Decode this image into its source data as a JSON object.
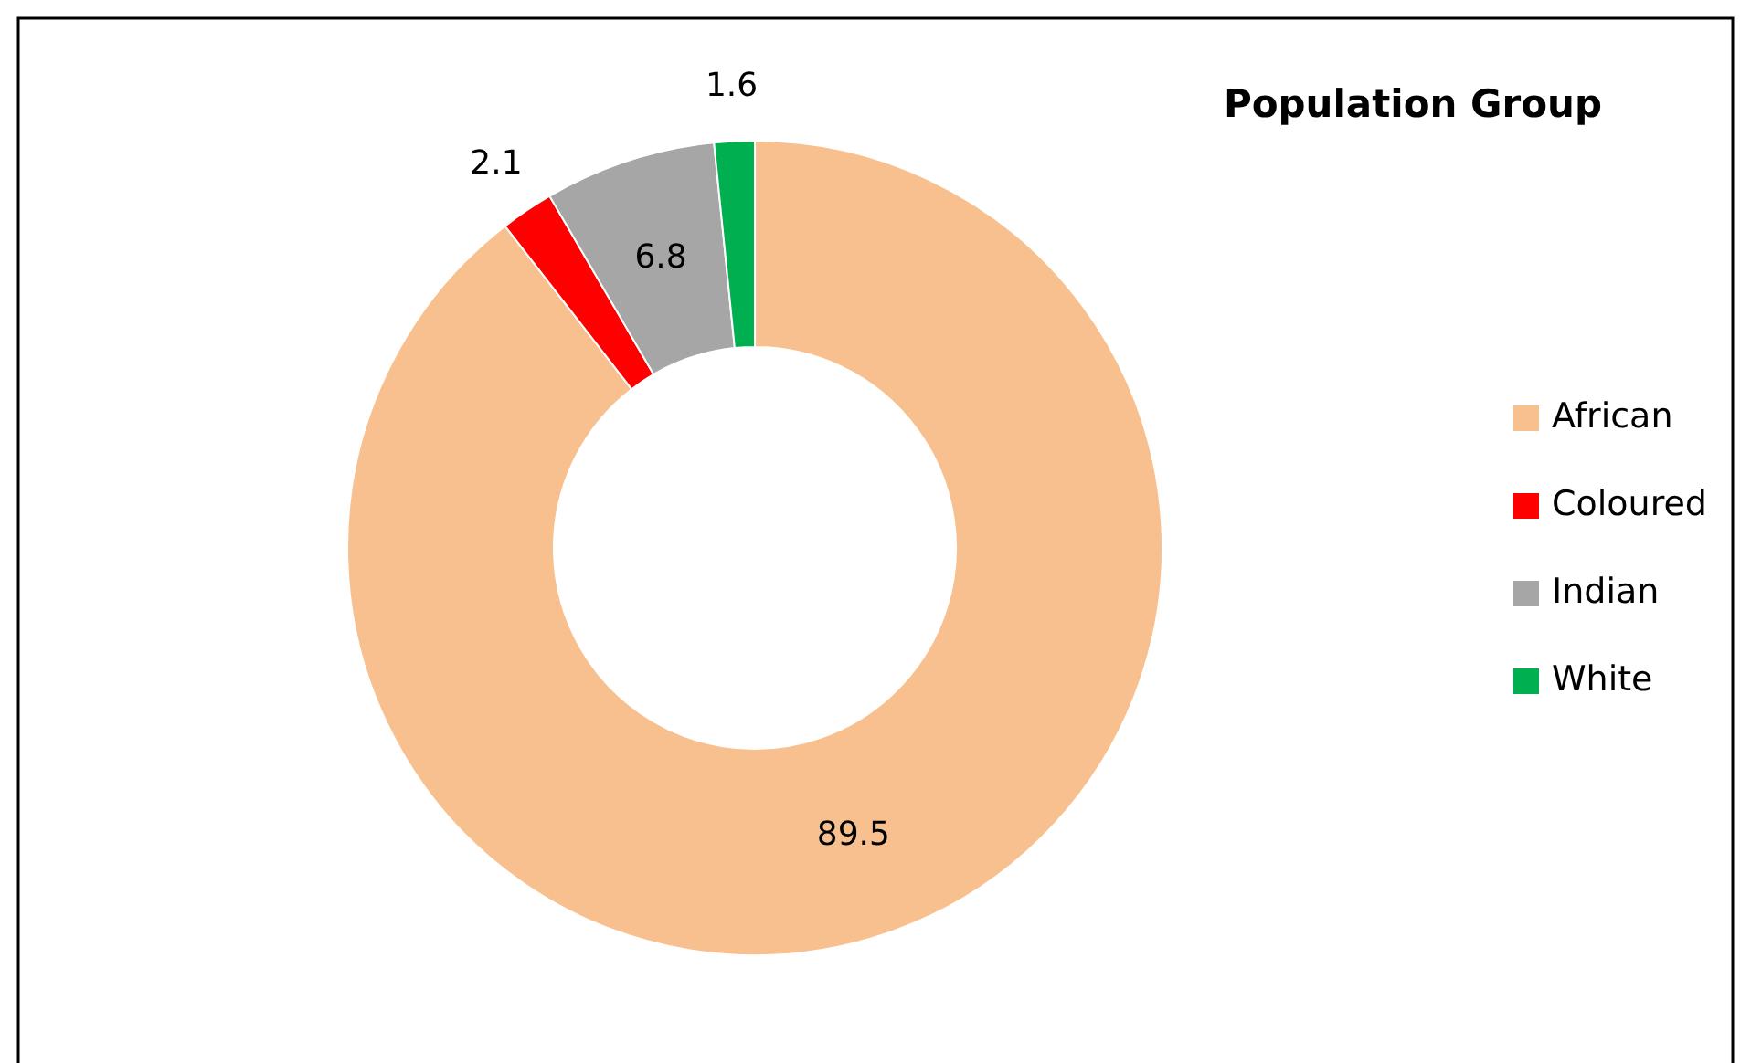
{
  "chart_data": {
    "type": "donut",
    "title": "Population Group",
    "categories": [
      "African",
      "Coloured",
      "Indian",
      "White"
    ],
    "values": [
      89.5,
      2.1,
      6.8,
      1.6
    ],
    "colors": [
      "#f9c08f",
      "#ff0000",
      "#a6a6a6",
      "#00b050"
    ],
    "data_labels": true,
    "legend": "right"
  }
}
